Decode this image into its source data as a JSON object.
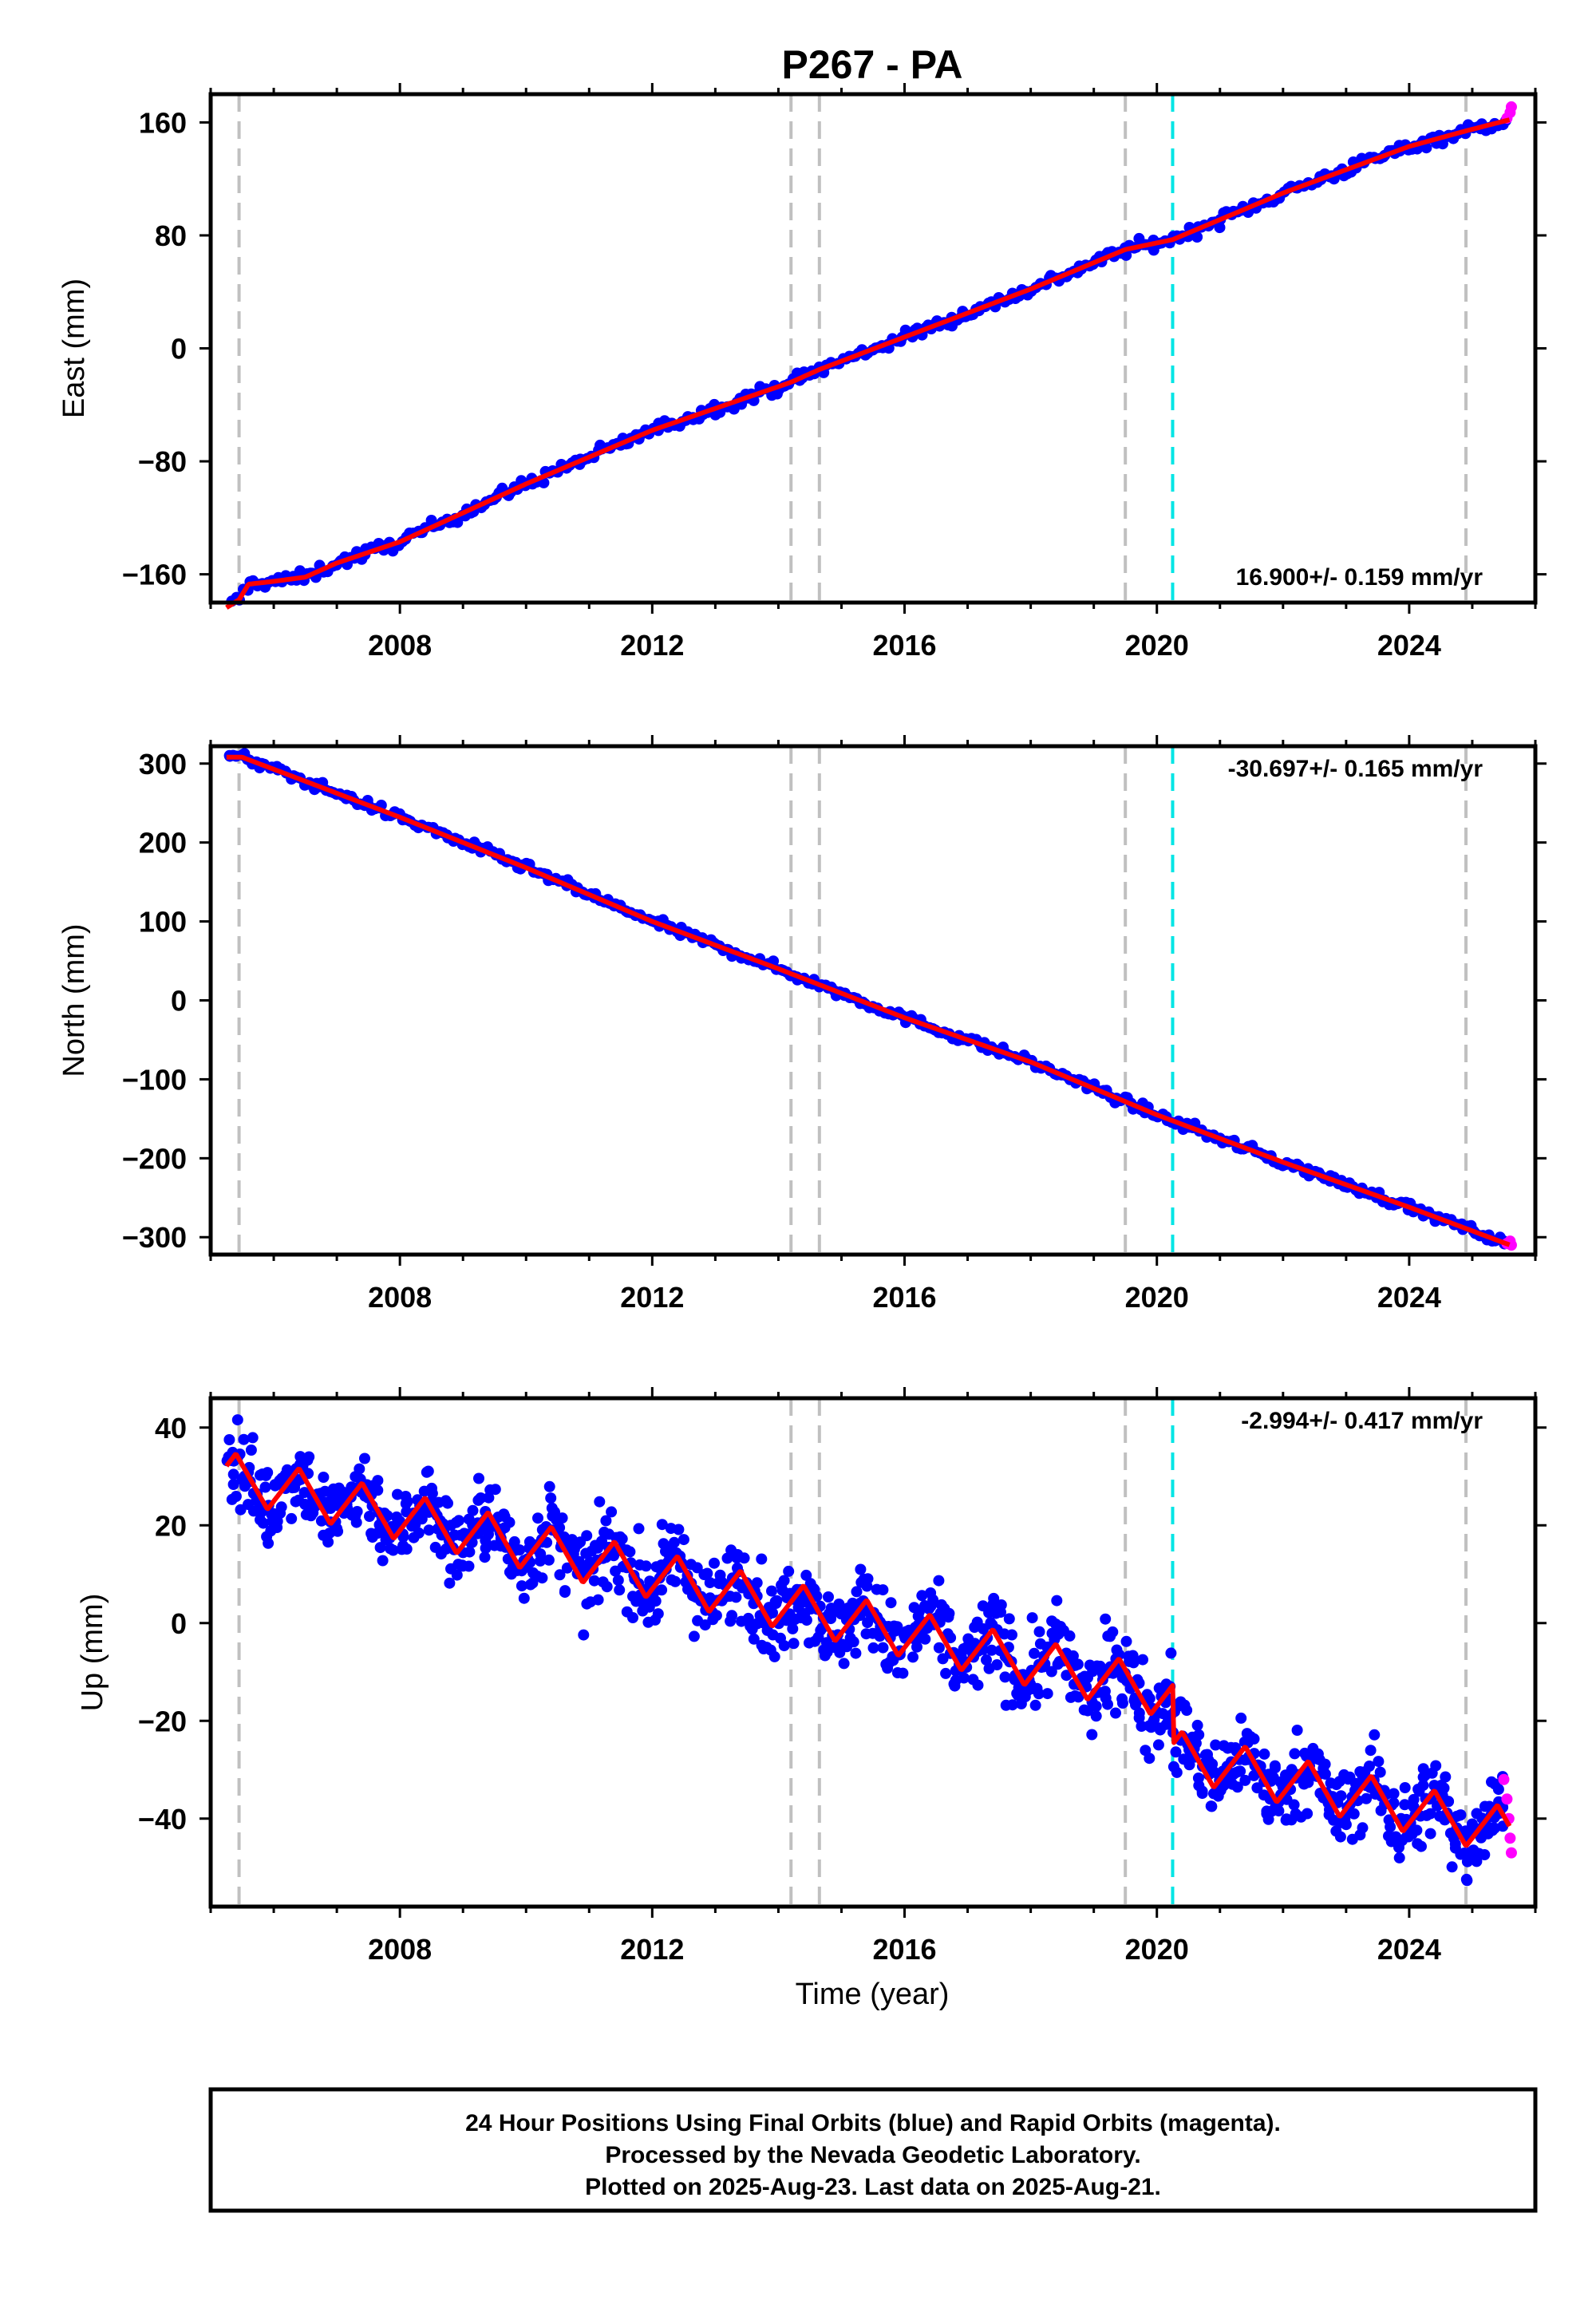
{
  "title": "P267 - PA",
  "colors": {
    "final_orbits": "#0000ff",
    "rapid_orbits": "#ff00ff",
    "model": "#ff0000",
    "event_line": "#c0c0c0",
    "event_line_cyan": "#00e5e5",
    "frame": "#000000"
  },
  "chart_data": [
    {
      "type": "scatter",
      "ylabel": "East (mm)",
      "xlabel": "",
      "xlim": [
        2005.0,
        2026.0
      ],
      "ylim": [
        -180,
        180
      ],
      "xticks": [
        2008,
        2012,
        2016,
        2020,
        2024
      ],
      "yticks": [
        -160,
        -80,
        0,
        80,
        160
      ],
      "ytick_labels": [
        "−160",
        "−80",
        "0",
        "80",
        "160"
      ],
      "rate_label": "16.900+/- 0.159 mm/yr",
      "rate_position": "bottom-right",
      "vlines_grey": [
        2005.45,
        2014.2,
        2014.65,
        2019.5,
        2024.9
      ],
      "vlines_cyan": [
        2020.25
      ],
      "model": {
        "x": [
          2005.2,
          2005.45,
          2005.6,
          2006.0,
          2006.5,
          2007.0,
          2008.0,
          2010.0,
          2012.0,
          2014.2,
          2014.65,
          2016.0,
          2018.0,
          2019.5,
          2020.25,
          2022.0,
          2024.0,
          2024.9,
          2025.6
        ],
        "y": [
          -185,
          -178,
          -167,
          -165,
          -162,
          -152,
          -137,
          -96,
          -58,
          -24,
          -15,
          8,
          42,
          70,
          77,
          110,
          143,
          154,
          162
        ]
      },
      "rapid": {
        "x": [
          2025.55,
          2025.6,
          2025.62
        ],
        "y": [
          163,
          167,
          171
        ]
      }
    },
    {
      "type": "scatter",
      "ylabel": "North (mm)",
      "xlabel": "",
      "xlim": [
        2005.0,
        2026.0
      ],
      "ylim": [
        -322,
        322
      ],
      "xticks": [
        2008,
        2012,
        2016,
        2020,
        2024
      ],
      "yticks": [
        -300,
        -200,
        -100,
        0,
        100,
        200,
        300
      ],
      "ytick_labels": [
        "−300",
        "−200",
        "−100",
        "0",
        "100",
        "200",
        "300"
      ],
      "rate_label": "-30.697+/- 0.165 mm/yr",
      "rate_position": "top-right",
      "vlines_grey": [
        2005.45,
        2014.2,
        2014.65,
        2019.5,
        2024.9
      ],
      "vlines_cyan": [
        2020.25
      ],
      "model": {
        "x": [
          2005.2,
          2005.5,
          2008.0,
          2010.0,
          2012.0,
          2014.0,
          2016.0,
          2018.0,
          2020.0,
          2022.0,
          2024.0,
          2025.6
        ],
        "y": [
          308,
          308,
          232,
          168,
          100,
          40,
          -22,
          -78,
          -145,
          -205,
          -262,
          -310
        ]
      },
      "rapid": {
        "x": [
          2025.55,
          2025.6,
          2025.62
        ],
        "y": [
          -308,
          -305,
          -310
        ]
      }
    },
    {
      "type": "scatter",
      "ylabel": "Up (mm)",
      "xlabel": "Time (year)",
      "xlim": [
        2005.0,
        2026.0
      ],
      "ylim": [
        -58,
        46
      ],
      "xticks": [
        2008,
        2012,
        2016,
        2020,
        2024
      ],
      "yticks": [
        -40,
        -20,
        0,
        20,
        40
      ],
      "ytick_labels": [
        "−40",
        "−20",
        "0",
        "20",
        "40"
      ],
      "rate_label": "-2.994+/- 0.417 mm/yr",
      "rate_position": "top-right",
      "vlines_grey": [
        2005.45,
        2014.2,
        2014.65,
        2019.5,
        2024.9
      ],
      "vlines_cyan": [
        2020.25
      ],
      "trend": {
        "x0": 2005.3,
        "y0": 30,
        "slope": -2.994,
        "cyan_offset": -12,
        "amplitude": 5.5,
        "phase_year": 2005.4
      },
      "rapid": {
        "x": [
          2025.5,
          2025.55,
          2025.58,
          2025.6,
          2025.62
        ],
        "y": [
          -32,
          -36,
          -40,
          -44,
          -47
        ]
      }
    }
  ],
  "footer": {
    "lines": [
      "24 Hour Positions Using Final Orbits (blue) and Rapid Orbits (magenta).",
      "Processed by the Nevada Geodetic Laboratory.",
      "Plotted on 2025-Aug-23. Last data on 2025-Aug-21."
    ]
  }
}
